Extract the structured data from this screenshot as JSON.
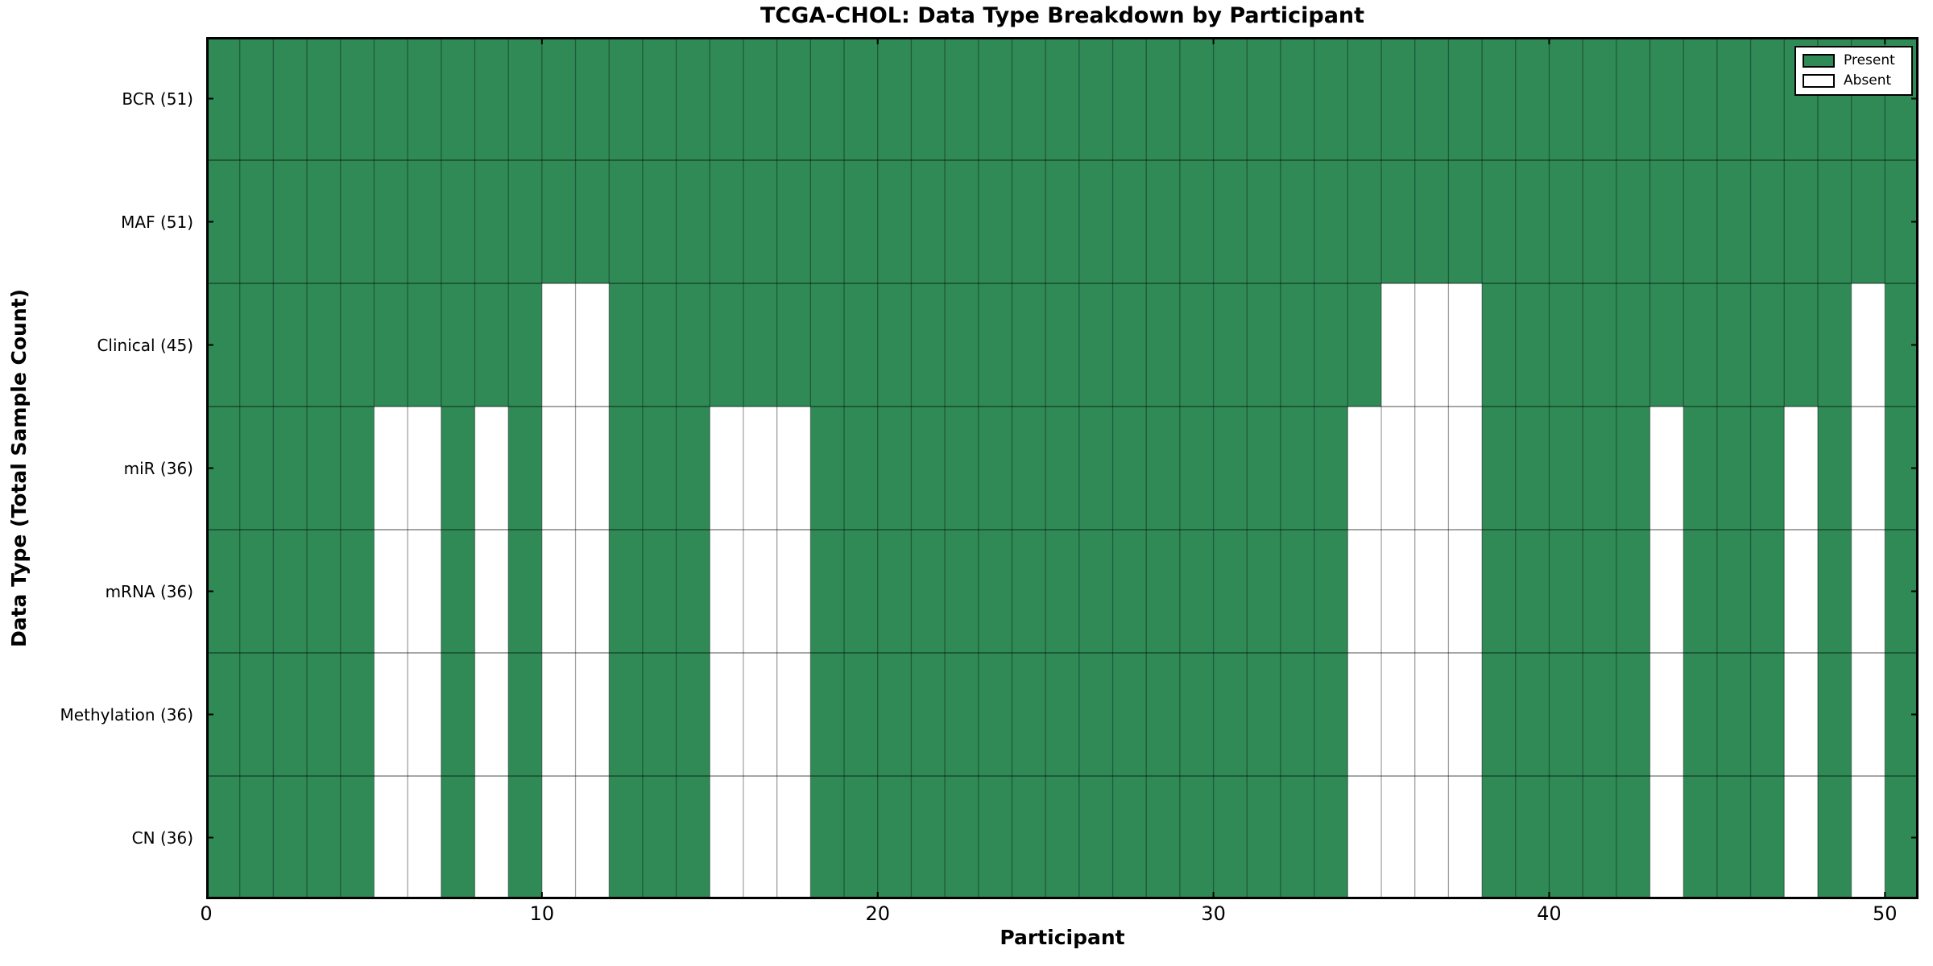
{
  "title": "TCGA-CHOL: Data Type Breakdown by Participant",
  "axes": {
    "xlabel": "Participant",
    "ylabel": "Data Type (Total Sample Count)"
  },
  "legend": {
    "items": [
      {
        "label": "Present",
        "color": "#2F8A56"
      },
      {
        "label": "Absent",
        "color": "#ffffff"
      }
    ]
  },
  "chart_data": {
    "type": "heatmap",
    "title": "TCGA-CHOL: Data Type Breakdown by Participant",
    "xlabel": "Participant",
    "ylabel": "Data Type (Total Sample Count)",
    "legend_position": "upper right",
    "x_range": [
      0,
      51
    ],
    "x_ticks": [
      0,
      10,
      20,
      30,
      40,
      50
    ],
    "n_participants": 51,
    "present_color": "#2F8A56",
    "absent_color": "#ffffff",
    "grid": true,
    "rows": [
      {
        "label": "BCR (51)",
        "data_type": "BCR",
        "present_count": 51,
        "absent_participants": []
      },
      {
        "label": "MAF (51)",
        "data_type": "MAF",
        "present_count": 51,
        "absent_participants": []
      },
      {
        "label": "Clinical (45)",
        "data_type": "Clinical",
        "present_count": 45,
        "absent_participants": [
          10,
          11,
          35,
          36,
          37,
          49
        ]
      },
      {
        "label": "miR (36)",
        "data_type": "miR",
        "present_count": 36,
        "absent_participants": [
          5,
          6,
          8,
          10,
          11,
          15,
          16,
          17,
          34,
          35,
          36,
          37,
          43,
          47,
          49
        ]
      },
      {
        "label": "mRNA (36)",
        "data_type": "mRNA",
        "present_count": 36,
        "absent_participants": [
          5,
          6,
          8,
          10,
          11,
          15,
          16,
          17,
          34,
          35,
          36,
          37,
          43,
          47,
          49
        ]
      },
      {
        "label": "Methylation (36)",
        "data_type": "Methylation",
        "present_count": 36,
        "absent_participants": [
          5,
          6,
          8,
          10,
          11,
          15,
          16,
          17,
          34,
          35,
          36,
          37,
          43,
          47,
          49
        ]
      },
      {
        "label": "CN (36)",
        "data_type": "CN",
        "present_count": 36,
        "absent_participants": [
          5,
          6,
          8,
          10,
          11,
          15,
          16,
          17,
          34,
          35,
          36,
          37,
          43,
          47,
          49
        ]
      }
    ]
  }
}
